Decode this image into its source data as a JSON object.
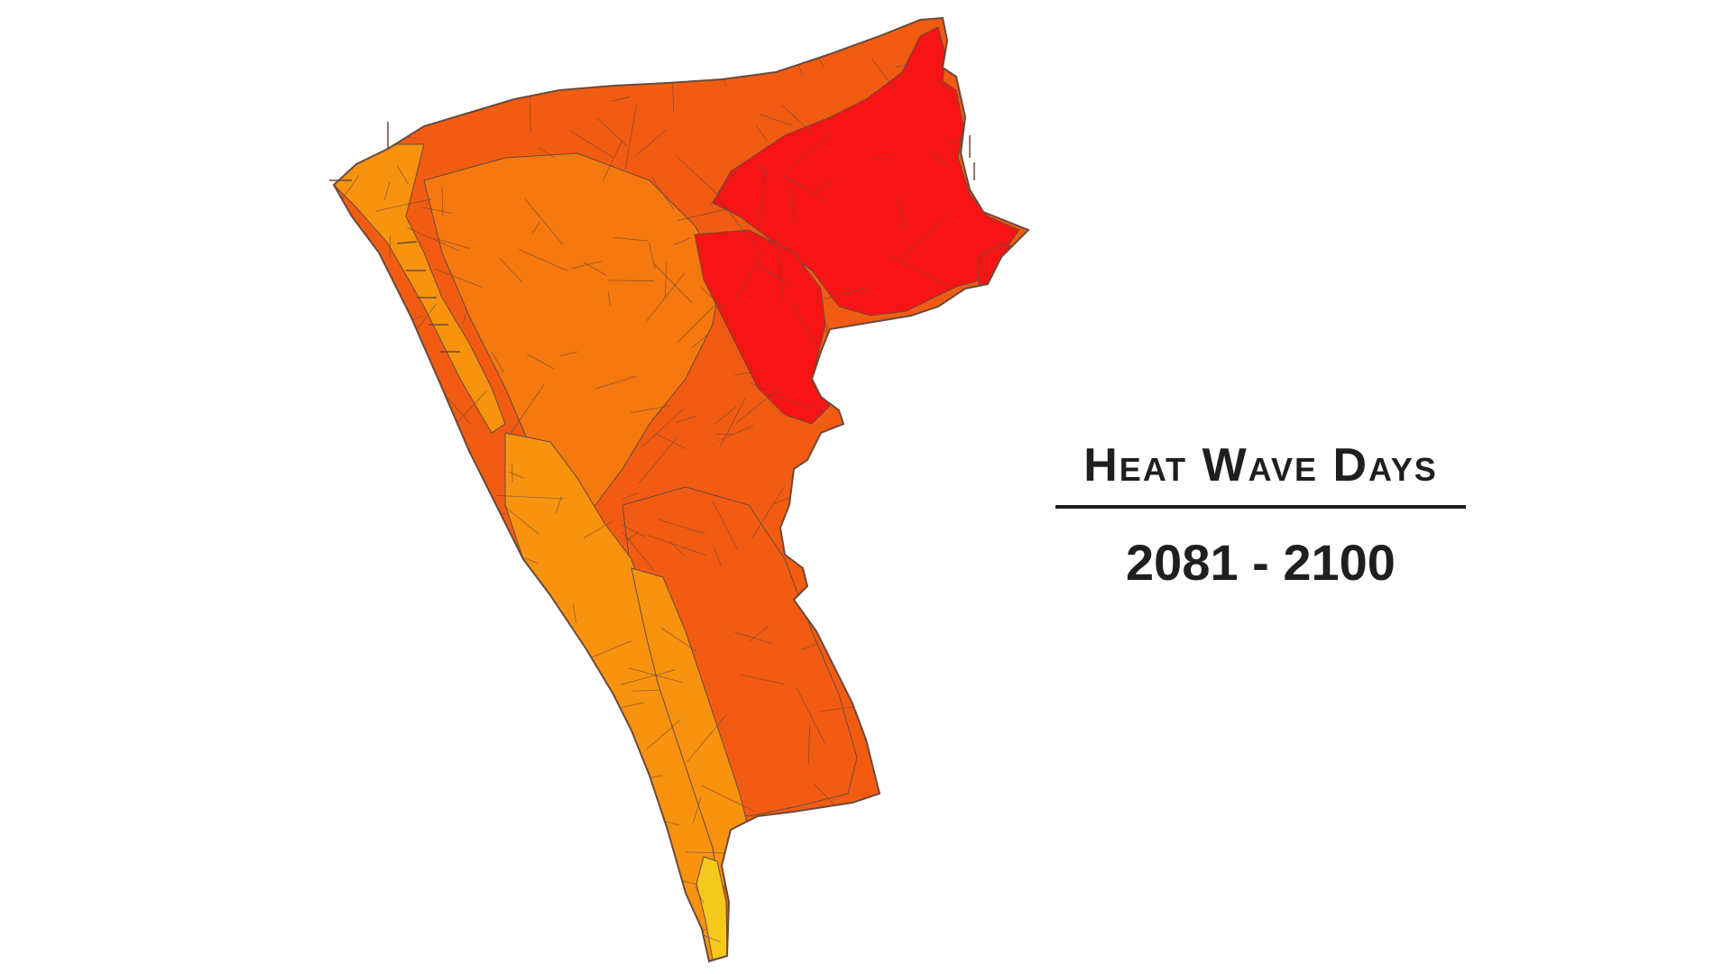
{
  "title": "Heat Wave Days",
  "period": "2081 - 2100",
  "colors": {
    "background": "#ffffff",
    "boundary": "#6b4a3a",
    "class_red": "#f71414",
    "class_orange_red": "#f25c12",
    "class_orange": "#f5790f",
    "class_amber": "#f7930f",
    "class_yellow": "#f5c81c",
    "text": "#1f1f1f"
  },
  "map_regions": [
    {
      "name": "northwest-coastal-strip",
      "color_class": "class_amber"
    },
    {
      "name": "western-coastal-band",
      "color_class": "class_amber"
    },
    {
      "name": "southern-coastal-band",
      "color_class": "class_amber"
    },
    {
      "name": "southern-yellow-tip",
      "color_class": "class_yellow"
    },
    {
      "name": "central-north-interior",
      "color_class": "class_orange_red"
    },
    {
      "name": "central-interior",
      "color_class": "class_orange"
    },
    {
      "name": "southern-interior",
      "color_class": "class_orange_red"
    },
    {
      "name": "northeast-urban-core",
      "color_class": "class_red"
    },
    {
      "name": "eastern-urban-core",
      "color_class": "class_red"
    },
    {
      "name": "eastern-peninsula",
      "color_class": "class_red"
    }
  ]
}
